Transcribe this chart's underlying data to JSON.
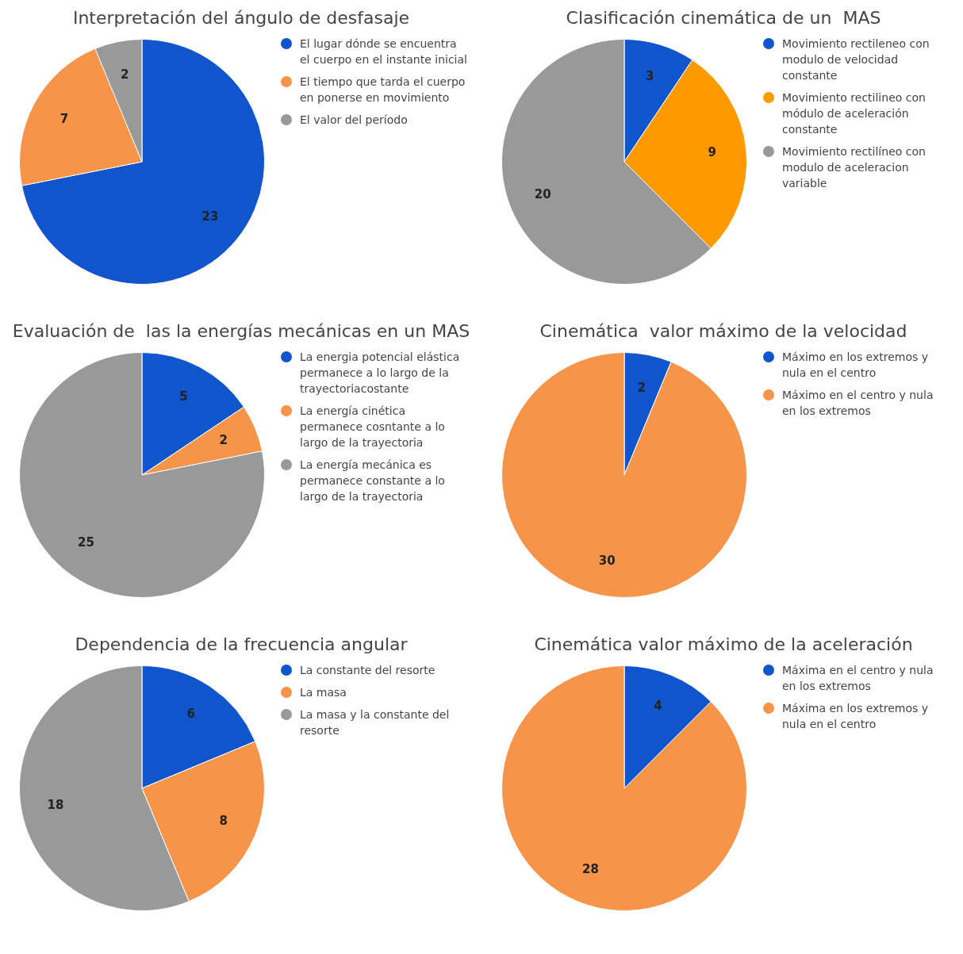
{
  "chart_data": [
    {
      "type": "pie",
      "title": "Interpretación del ángulo de desfasaje",
      "categories": [
        "El lugar dónde se encuentra el cuerpo en el instante inicial",
        "El tiempo que tarda el cuerpo en ponerse en movimiento",
        "El valor del período"
      ],
      "values": [
        23,
        7,
        2
      ],
      "colors": [
        "#1155cc",
        "#f6954a",
        "#999999"
      ],
      "data_labels": true,
      "legend": "right"
    },
    {
      "type": "pie",
      "title": "Clasificación cinemática de un  MAS",
      "categories": [
        "Movimiento rectileneo con modulo de velocidad constante",
        "Movimiento rectilineo con módulo de aceleración constante",
        "Movimiento rectilíneo con modulo de aceleracion variable"
      ],
      "values": [
        3,
        9,
        20
      ],
      "colors": [
        "#1155cc",
        "#ff9900",
        "#999999"
      ],
      "data_labels": true,
      "legend": "right"
    },
    {
      "type": "pie",
      "title": "Evaluación de  las la energías mecánicas en un MAS",
      "categories": [
        "La energia potencial elástica permanece a lo largo de la trayectoriacostante",
        "La energía cinética permanece cosntante a lo largo de la trayectoria",
        "La energía mecánica  es permanece constante a lo largo de la trayectoria"
      ],
      "values": [
        5,
        2,
        25
      ],
      "colors": [
        "#1155cc",
        "#f6954a",
        "#999999"
      ],
      "data_labels": true,
      "legend": "right"
    },
    {
      "type": "pie",
      "title": "Cinemática  valor máximo de la velocidad",
      "categories": [
        "Máximo en los extremos y nula en el centro",
        "Máximo en el centro y nula en los extremos"
      ],
      "values": [
        2,
        30
      ],
      "colors": [
        "#1155cc",
        "#f6954a"
      ],
      "data_labels": true,
      "legend": "right"
    },
    {
      "type": "pie",
      "title": "Dependencia de la frecuencia angular",
      "categories": [
        "La constante del resorte",
        "La masa",
        "La masa y la constante del resorte"
      ],
      "values": [
        6,
        8,
        18
      ],
      "colors": [
        "#1155cc",
        "#f6954a",
        "#999999"
      ],
      "data_labels": true,
      "legend": "right"
    },
    {
      "type": "pie",
      "title": "Cinemática valor máximo de la aceleración",
      "categories": [
        "Máxima en el centro y nula en los extremos",
        "Máxima en los extremos y nula en el centro"
      ],
      "values": [
        4,
        28
      ],
      "colors": [
        "#1155cc",
        "#f6954a"
      ],
      "data_labels": true,
      "legend": "right"
    }
  ]
}
